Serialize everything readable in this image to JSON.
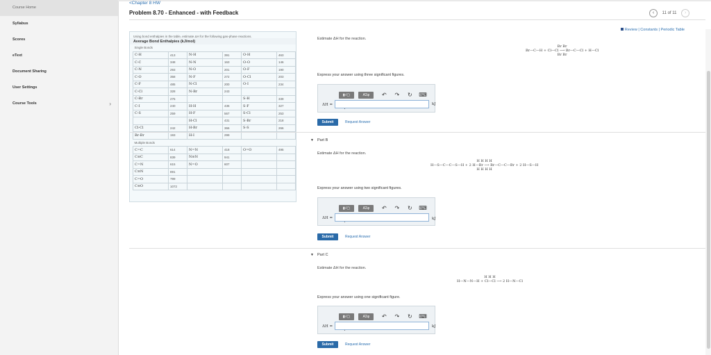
{
  "sidebar": {
    "items": [
      {
        "label": "Course Home"
      },
      {
        "label": "Syllabus"
      },
      {
        "label": "Scores"
      },
      {
        "label": "eText"
      },
      {
        "label": "Document Sharing"
      },
      {
        "label": "User Settings"
      },
      {
        "label": "Course Tools"
      }
    ],
    "chevron": "›"
  },
  "header": {
    "back_link": "<Chapter 8 HW",
    "title": "Problem 8.70 - Enhanced - with Feedback",
    "pager": {
      "prev": "‹",
      "count": "11 of 11",
      "next": "›"
    }
  },
  "review_links": "Review | Constants | Periodic Table",
  "table": {
    "intro": "Using bond enthalpies in the table, estimate ΔH for the following gas-phase reactions.",
    "title": "Average Bond Enthalpies (kJ/mol)",
    "single_label": "Single Bonds",
    "single_rows": [
      [
        "C-H",
        "413",
        "N-H",
        "391",
        "O-H",
        "463"
      ],
      [
        "C-C",
        "348",
        "N-N",
        "163",
        "O-O",
        "146"
      ],
      [
        "C-N",
        "293",
        "N-O",
        "201",
        "O-F",
        "190"
      ],
      [
        "C-O",
        "358",
        "N-F",
        "272",
        "O-Cl",
        "203"
      ],
      [
        "C-F",
        "485",
        "N-Cl",
        "200",
        "O-I",
        "234"
      ],
      [
        "C-Cl",
        "328",
        "N-Br",
        "243",
        "",
        ""
      ],
      [
        "C-Br",
        "276",
        "",
        "",
        "S-H",
        "339"
      ],
      [
        "C-I",
        "240",
        "H-H",
        "436",
        "S-F",
        "327"
      ],
      [
        "C-S",
        "259",
        "H-F",
        "567",
        "S-Cl",
        "253"
      ],
      [
        "",
        "",
        "H-Cl",
        "431",
        "S-Br",
        "218"
      ],
      [
        "Cl-Cl",
        "242",
        "H-Br",
        "366",
        "S-S",
        "266"
      ],
      [
        "Br-Br",
        "193",
        "H-I",
        "299",
        "",
        ""
      ]
    ],
    "multiple_label": "Multiple Bonds",
    "multiple_rows": [
      [
        "C=C",
        "614",
        "N=N",
        "418",
        "O=O",
        "495"
      ],
      [
        "C≡C",
        "839",
        "N≡N",
        "941",
        "",
        ""
      ],
      [
        "C=N",
        "615",
        "N=O",
        "607",
        "",
        ""
      ],
      [
        "C≡N",
        "891",
        "",
        "",
        "",
        ""
      ],
      [
        "C=O",
        "799",
        "",
        "",
        "",
        ""
      ],
      [
        "C≡O",
        "1072",
        "",
        "",
        "",
        ""
      ]
    ]
  },
  "parts": {
    "a": {
      "prompt": "Estimate ΔH for the reaction.",
      "reaction_top": "Br                         Br",
      "reaction_mid": "Br—C—H + Cl—Cl ⟶ Br—C—Cl + H—Cl",
      "reaction_bot": "Br                         Br",
      "instruction": "Express your answer using three significant figures.",
      "input_label": "ΔH =",
      "input_value": "",
      "unit": "kJ",
      "submit": "Submit",
      "request": "Request Answer"
    },
    "b": {
      "header": "Part B",
      "prompt": "Estimate ΔH for the reaction.",
      "reaction_top": "H  H                         H  H",
      "reaction_mid": "H—S—C—C—S—H + 2 H—Br ⟶ Br—C—C—Br + 2 H—S—H",
      "reaction_bot": "H  H                         H  H",
      "instruction": "Express your answer using two significant figures.",
      "input_label": "ΔH =",
      "input_value": "",
      "unit": "kJ",
      "submit": "Submit",
      "request": "Request Answer"
    },
    "c": {
      "header": "Part C",
      "prompt": "Estimate ΔH for the reaction.",
      "reaction_top": "H  H                         H",
      "reaction_mid": "H—N—N—H + Cl—Cl ⟶ 2 H—N—Cl",
      "instruction": "Express your answer using one significant figure.",
      "input_label": "ΔH =",
      "input_value": "",
      "unit": "kJ",
      "submit": "Submit",
      "request": "Request Answer"
    }
  },
  "toolbar": {
    "template_label": "▮√▢",
    "alpha_label": "AΣφ",
    "undo": "↶",
    "redo": "↷",
    "reset": "↻",
    "keyboard": "⌨",
    "help": "?"
  }
}
